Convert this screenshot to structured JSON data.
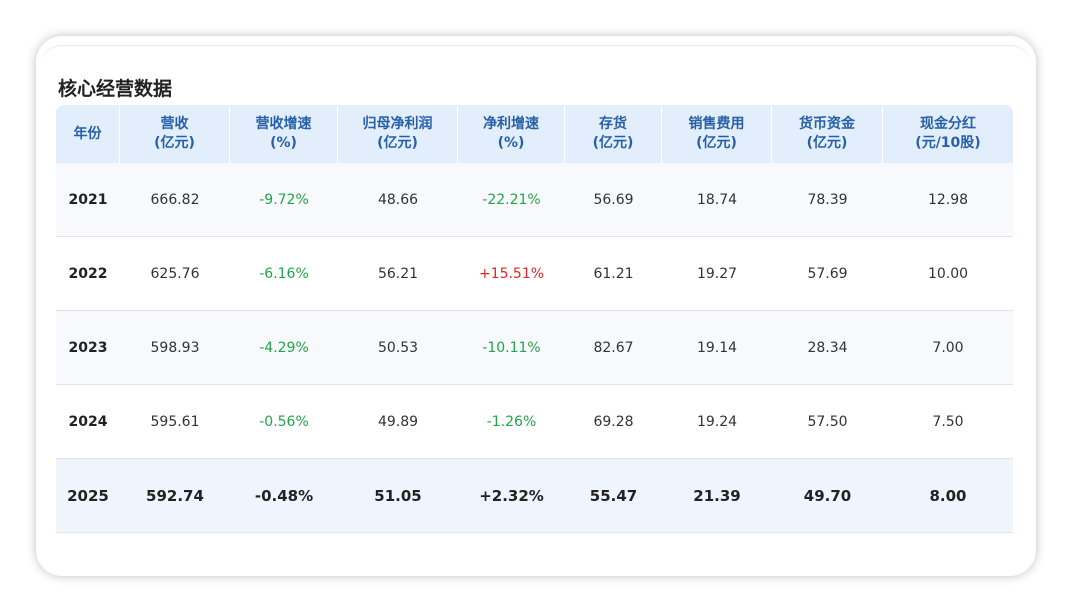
{
  "title": "核心经营数据",
  "table": {
    "headers": [
      [
        "年份"
      ],
      [
        "营收",
        "(亿元)"
      ],
      [
        "营收增速",
        "(%)"
      ],
      [
        "归母净利润",
        "(亿元)"
      ],
      [
        "净利增速",
        "(%)"
      ],
      [
        "存货",
        "(亿元)"
      ],
      [
        "销售费用",
        "(亿元)"
      ],
      [
        "货币资金",
        "(亿元)"
      ],
      [
        "现金分红",
        "(元/10股)"
      ]
    ],
    "rows": [
      [
        "2021",
        "666.82",
        "-9.72%",
        "48.66",
        "-22.21%",
        "56.69",
        "18.74",
        "78.39",
        "12.98"
      ],
      [
        "2022",
        "625.76",
        "-6.16%",
        "56.21",
        "+15.51%",
        "61.21",
        "19.27",
        "57.69",
        "10.00"
      ],
      [
        "2023",
        "598.93",
        "-4.29%",
        "50.53",
        "-10.11%",
        "82.67",
        "19.14",
        "28.34",
        "7.00"
      ],
      [
        "2024",
        "595.61",
        "-0.56%",
        "49.89",
        "-1.26%",
        "69.28",
        "19.24",
        "57.50",
        "7.50"
      ],
      [
        "2025",
        "592.74",
        "-0.48%",
        "51.05",
        "+2.32%",
        "55.47",
        "21.39",
        "49.70",
        "8.00"
      ]
    ]
  }
}
